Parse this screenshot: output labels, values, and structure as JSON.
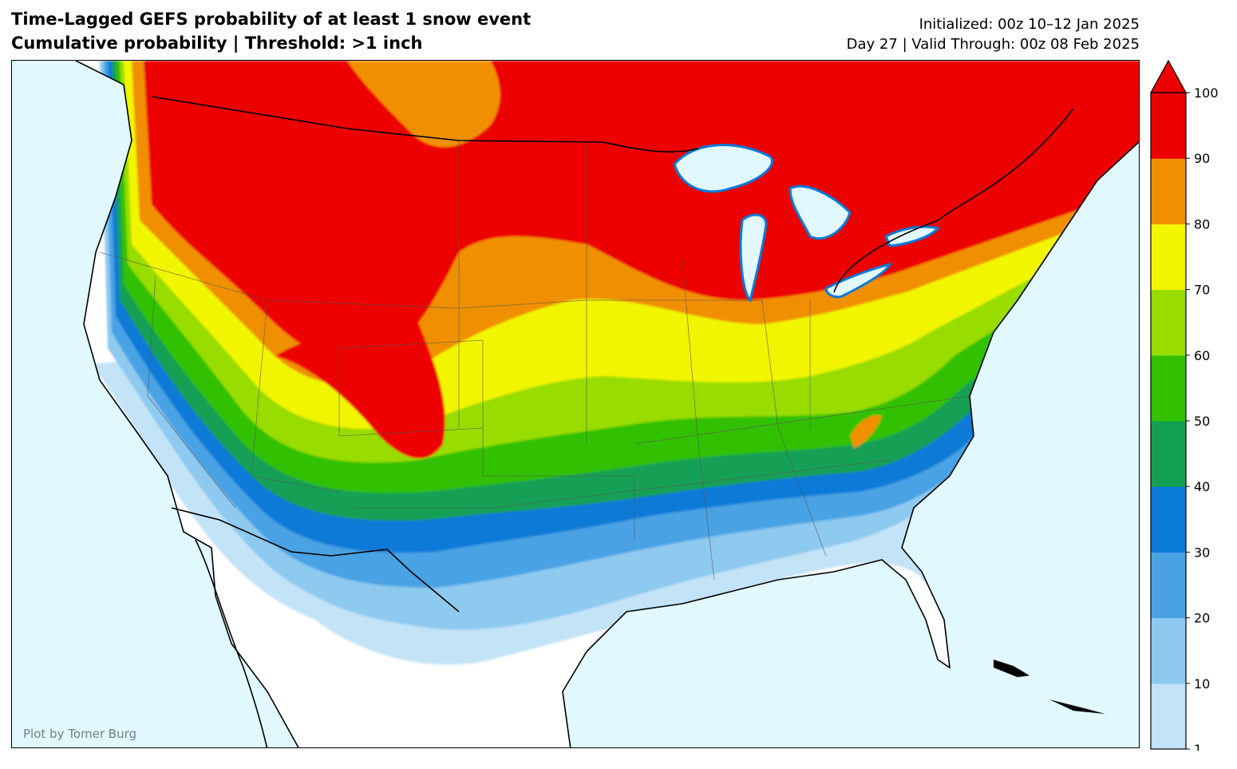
{
  "title_line1": "Time-Lagged GEFS probability of at least 1 snow event",
  "title_line2": "Cumulative probability | Threshold: >1 inch",
  "init_line1": "Initialized: 00z 10–12 Jan 2025",
  "init_line2": "Day 27 | Valid Through: 00z 08 Feb 2025",
  "credit": "Plot by Tomer Burg",
  "colorbar": {
    "labels": [
      "1",
      "10",
      "20",
      "30",
      "40",
      "50",
      "60",
      "70",
      "80",
      "90",
      "100"
    ],
    "colors": [
      "#c3e3f7",
      "#8ec9f0",
      "#4aa2e3",
      "#0a7ad8",
      "#14a054",
      "#33c100",
      "#98dc00",
      "#f1f500",
      "#f09000",
      "#ec0000"
    ],
    "extend": "max"
  },
  "map": {
    "ocean_color": "#e1f8ff",
    "land_color": "#ffffff",
    "region": "Contiguous United States"
  }
}
